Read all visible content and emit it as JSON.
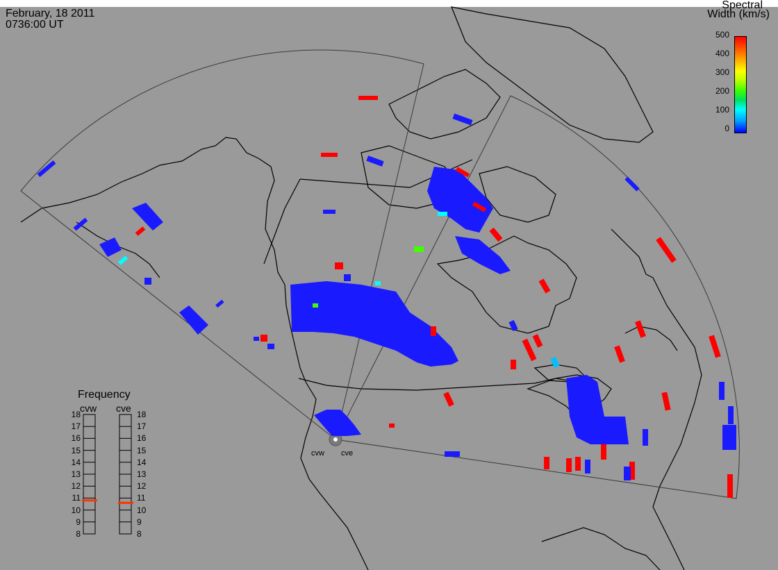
{
  "header": {
    "date": "February, 18 2011",
    "time": "0736:00 UT"
  },
  "colorbar": {
    "title_line1": "Spectral",
    "title_line2": "Width (km/s)",
    "ticks": [
      "500",
      "400",
      "300",
      "200",
      "100",
      "0"
    ],
    "min": 0,
    "max": 500,
    "colors": [
      "#0000ff",
      "#00ffff",
      "#40ff00",
      "#ffff00",
      "#ff0000"
    ]
  },
  "frequency_panel": {
    "title": "Frequency",
    "columns": [
      {
        "label": "cvw",
        "selected_mhz": 10.8
      },
      {
        "label": "cve",
        "selected_mhz": 10.6
      }
    ],
    "ticks": [
      "18",
      "17",
      "16",
      "15",
      "14",
      "13",
      "12",
      "11",
      "10",
      "9",
      "8"
    ],
    "indicator_color": "#ff3300"
  },
  "radars": {
    "labels": [
      "cvw",
      "cve"
    ]
  },
  "map_colors": {
    "background": "#9a9a9a",
    "coastline": "#000000",
    "fov_outline": "#3a3a3a"
  }
}
